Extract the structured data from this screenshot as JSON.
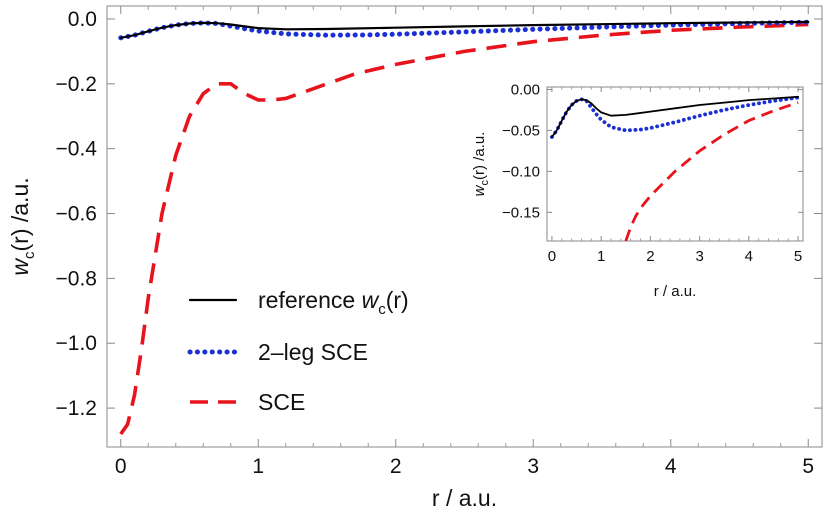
{
  "chart_data": [
    {
      "type": "line",
      "xlabel": "r / a.u.",
      "ylabel_main": "w",
      "ylabel_sub": "c",
      "ylabel_rest": "(r) /a.u.",
      "xlim": [
        -0.1,
        5.1
      ],
      "ylim": [
        -1.32,
        0.04
      ],
      "xticks": [
        0,
        1,
        2,
        3,
        4,
        5
      ],
      "xtick_labels": [
        "0",
        "1",
        "2",
        "3",
        "4",
        "5"
      ],
      "yticks": [
        0.0,
        -0.2,
        -0.4,
        -0.6,
        -0.8,
        -1.0,
        -1.2
      ],
      "ytick_labels": [
        "0.0",
        "−0.2",
        "−0.4",
        "−0.6",
        "−0.8",
        "−1.0",
        "−1.2"
      ],
      "legend_position": "bottom-left",
      "series": [
        {
          "name": "reference",
          "name_italic": "w",
          "name_sub": "c",
          "name_tail": "(r)",
          "color": "#000000",
          "style": "solid",
          "x": [
            0,
            0.1,
            0.2,
            0.3,
            0.4,
            0.5,
            0.6,
            0.7,
            0.8,
            0.9,
            1.0,
            1.2,
            1.5,
            2.0,
            2.5,
            3.0,
            3.5,
            4.0,
            4.5,
            5.0
          ],
          "y": [
            -0.058,
            -0.05,
            -0.038,
            -0.027,
            -0.019,
            -0.014,
            -0.012,
            -0.013,
            -0.017,
            -0.023,
            -0.028,
            -0.032,
            -0.031,
            -0.027,
            -0.023,
            -0.019,
            -0.016,
            -0.013,
            -0.011,
            -0.009
          ]
        },
        {
          "name": "2–leg SCE",
          "color": "#1a2fd6",
          "style": "dotted",
          "x": [
            0,
            0.1,
            0.2,
            0.3,
            0.4,
            0.5,
            0.6,
            0.7,
            0.8,
            0.9,
            1.0,
            1.2,
            1.5,
            1.8,
            2.0,
            2.5,
            3.0,
            3.5,
            4.0,
            4.5,
            5.0
          ],
          "y": [
            -0.058,
            -0.05,
            -0.038,
            -0.027,
            -0.019,
            -0.014,
            -0.012,
            -0.014,
            -0.022,
            -0.03,
            -0.037,
            -0.046,
            -0.05,
            -0.049,
            -0.047,
            -0.04,
            -0.032,
            -0.025,
            -0.019,
            -0.014,
            -0.01
          ]
        },
        {
          "name": "SCE",
          "color": "#e8131b",
          "style": "dashed",
          "x": [
            0,
            0.05,
            0.1,
            0.15,
            0.2,
            0.3,
            0.4,
            0.5,
            0.6,
            0.7,
            0.8,
            0.9,
            1.0,
            1.1,
            1.2,
            1.3,
            1.5,
            1.7,
            2.0,
            2.5,
            3.0,
            3.5,
            4.0,
            4.5,
            5.0
          ],
          "y": [
            -1.28,
            -1.25,
            -1.16,
            -1.02,
            -0.86,
            -0.6,
            -0.42,
            -0.3,
            -0.23,
            -0.2,
            -0.2,
            -0.23,
            -0.25,
            -0.25,
            -0.245,
            -0.23,
            -0.2,
            -0.17,
            -0.14,
            -0.1,
            -0.07,
            -0.05,
            -0.035,
            -0.025,
            -0.017
          ]
        }
      ]
    },
    {
      "type": "line",
      "inset": true,
      "xlabel": "r / a.u.",
      "ylabel_main": "w",
      "ylabel_sub": "c",
      "ylabel_rest": "(r) /a.u.",
      "xlim": [
        -0.1,
        5.1
      ],
      "ylim": [
        -0.185,
        0.003
      ],
      "xticks": [
        0,
        1,
        2,
        3,
        4,
        5
      ],
      "xtick_labels": [
        "0",
        "1",
        "2",
        "3",
        "4",
        "5"
      ],
      "yticks": [
        0.0,
        -0.05,
        -0.1,
        -0.15
      ],
      "ytick_labels": [
        "0.00",
        "−0.05",
        "−0.10",
        "−0.15"
      ],
      "series": [
        {
          "name": "reference",
          "color": "#000000",
          "style": "solid",
          "x": [
            0,
            0.1,
            0.2,
            0.3,
            0.4,
            0.5,
            0.6,
            0.7,
            0.8,
            0.9,
            1.0,
            1.2,
            1.5,
            2.0,
            2.5,
            3.0,
            3.5,
            4.0,
            4.5,
            5.0
          ],
          "y": [
            -0.058,
            -0.05,
            -0.038,
            -0.027,
            -0.019,
            -0.014,
            -0.012,
            -0.013,
            -0.017,
            -0.023,
            -0.028,
            -0.032,
            -0.031,
            -0.027,
            -0.023,
            -0.019,
            -0.016,
            -0.013,
            -0.011,
            -0.009
          ]
        },
        {
          "name": "2–leg SCE",
          "color": "#1a2fd6",
          "style": "dotted",
          "x": [
            0,
            0.1,
            0.2,
            0.3,
            0.4,
            0.5,
            0.6,
            0.7,
            0.8,
            0.9,
            1.0,
            1.2,
            1.5,
            1.8,
            2.0,
            2.5,
            3.0,
            3.5,
            4.0,
            4.5,
            5.0
          ],
          "y": [
            -0.058,
            -0.05,
            -0.038,
            -0.027,
            -0.019,
            -0.014,
            -0.012,
            -0.014,
            -0.022,
            -0.03,
            -0.037,
            -0.046,
            -0.05,
            -0.049,
            -0.047,
            -0.04,
            -0.032,
            -0.025,
            -0.019,
            -0.014,
            -0.01
          ]
        },
        {
          "name": "SCE",
          "color": "#e8131b",
          "style": "dashed",
          "x": [
            1.5,
            1.6,
            1.7,
            1.8,
            2.0,
            2.2,
            2.5,
            2.8,
            3.0,
            3.5,
            4.0,
            4.5,
            5.0
          ],
          "y": [
            -0.185,
            -0.168,
            -0.155,
            -0.145,
            -0.13,
            -0.118,
            -0.1,
            -0.085,
            -0.075,
            -0.055,
            -0.038,
            -0.026,
            -0.016
          ]
        }
      ]
    }
  ]
}
